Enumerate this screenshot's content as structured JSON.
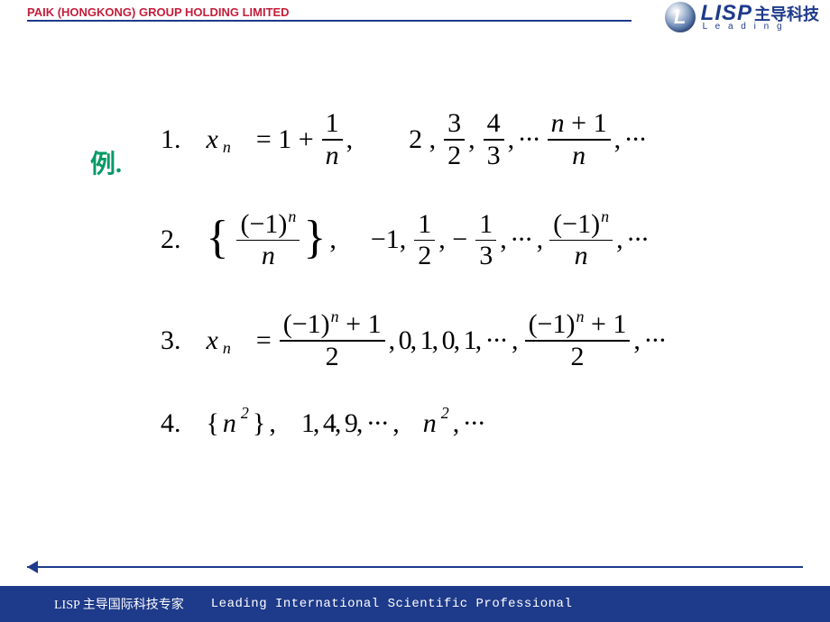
{
  "header": {
    "company": "PAIK (HONGKONG) GROUP HOLDING LIMITED",
    "logo_letter": "L",
    "logo_text": "LISP",
    "logo_cn": "主导科技",
    "logo_sub": "L e a d i n g"
  },
  "example_label": "例.",
  "footer": {
    "left": "LISP 主导国际科技专家",
    "right": "Leading International Scientific Professional"
  },
  "colors": {
    "blue": "#1e3a8a",
    "red": "#c41e3a",
    "green": "#009966"
  },
  "eq": {
    "r1_n": "1.",
    "r1_xn": "x",
    "r1_eq": "= 1 +",
    "r1_f1n": "1",
    "r1_f1d": "n",
    "r1_c": ",",
    "r1_two": "2 ,",
    "r1_f2n": "3",
    "r1_f2d": "2",
    "r1_f3n": "4",
    "r1_f3d": "3",
    "r1_dots": ", ···",
    "r1_f4n": "n + 1",
    "r1_f4d": "n",
    "r1_end": ", ···",
    "r2_n": "2.",
    "r2_f1n": "(−1)",
    "r2_f1d": "n",
    "r2_c": ",",
    "r2_neg1": "−1,",
    "r2_f2n": "1",
    "r2_f2d": "2",
    "r2_neg": ", −",
    "r2_f3n": "1",
    "r2_f3d": "3",
    "r2_d1": ", ··· ,",
    "r2_f4n": "(−1)",
    "r2_f4d": "n",
    "r2_end": ", ···",
    "r3_n": "3.",
    "r3_xn": "x",
    "r3_eq": "=",
    "r3_f1na": "(−1)",
    "r3_f1nb": "+ 1",
    "r3_f1d": "2",
    "r3_mid": ",  0, 1, 0, 1, ··· ,",
    "r3_f2na": "(−1)",
    "r3_f2nb": "+ 1",
    "r3_f2d": "2",
    "r3_end": ", ···",
    "r4_n": "4.",
    "r4_lb": "{",
    "r4_nsq": "n",
    "r4_rb": "}",
    "r4_c": ",",
    "r4_seq": "1, 4, 9, ··· ,",
    "r4_nsq2": "n",
    "r4_end": ", ···"
  }
}
